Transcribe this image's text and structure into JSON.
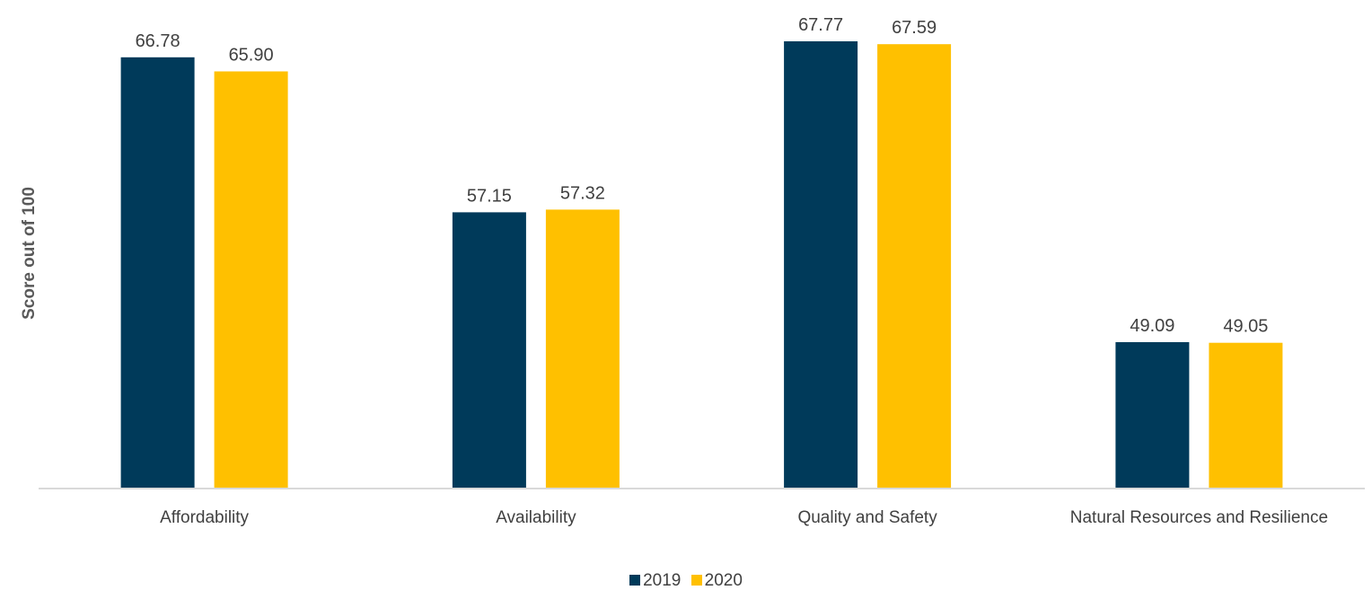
{
  "chart_data": {
    "type": "bar",
    "title": "",
    "xlabel": "",
    "ylabel": "Score out of 100",
    "categories": [
      "Affordability",
      "Availability",
      "Quality and Safety",
      "Natural Resources and Resilience"
    ],
    "series": [
      {
        "name": "2019",
        "color": "#003A5A",
        "values": [
          66.78,
          57.15,
          67.77,
          49.09
        ],
        "labels": [
          "66.78",
          "57.15",
          "67.77",
          "49.09"
        ]
      },
      {
        "name": "2020",
        "color": "#FFC000",
        "values": [
          65.9,
          57.32,
          67.59,
          49.05
        ],
        "labels": [
          "65.90",
          "57.32",
          "67.59",
          "49.05"
        ]
      }
    ],
    "ylim": [
      40,
      70
    ],
    "grid": false,
    "legend_position": "bottom"
  }
}
